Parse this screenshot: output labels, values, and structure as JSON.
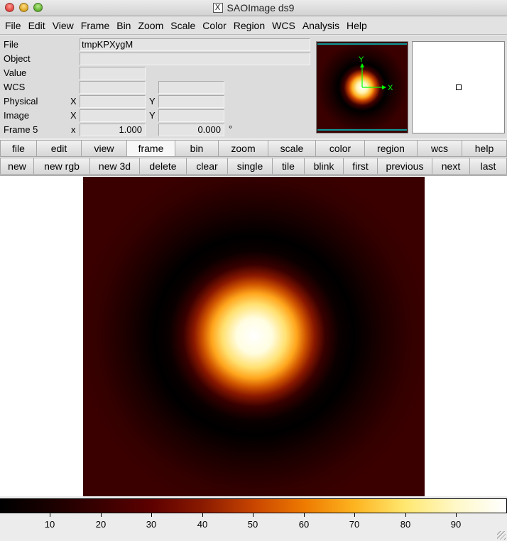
{
  "window": {
    "title": "SAOImage ds9"
  },
  "menubar": [
    "File",
    "Edit",
    "View",
    "Frame",
    "Bin",
    "Zoom",
    "Scale",
    "Color",
    "Region",
    "WCS",
    "Analysis",
    "Help"
  ],
  "info": {
    "file_label": "File",
    "file_value": "tmpKPXygM",
    "object_label": "Object",
    "object_value": "",
    "value_label": "Value",
    "value_value": "",
    "wcs_label": "WCS",
    "physical_label": "Physical",
    "image_label": "Image",
    "frame_label": "Frame 5",
    "x_label": "X",
    "y_label": "Y",
    "x_small_label": "x",
    "zoom_value": "1.000",
    "angle_value": "0.000",
    "degree_symbol": "°"
  },
  "panner": {
    "axis_x": "X",
    "axis_y": "Y",
    "axis_color": "#00ff00",
    "box_color": "#00cccc"
  },
  "buttons_main": [
    "file",
    "edit",
    "view",
    "frame",
    "bin",
    "zoom",
    "scale",
    "color",
    "region",
    "wcs",
    "help"
  ],
  "buttons_main_active": "frame",
  "buttons_frame": [
    "new",
    "new rgb",
    "new 3d",
    "delete",
    "clear",
    "single",
    "tile",
    "blink",
    "first",
    "previous",
    "next",
    "last"
  ],
  "colorbar": {
    "ticks": [
      "10",
      "20",
      "30",
      "40",
      "50",
      "60",
      "70",
      "80",
      "90"
    ],
    "min": 0,
    "max": 100
  },
  "colors": {
    "image_bg": "#3a0000",
    "core": "#ffffff",
    "halo": "#ff9d1a"
  }
}
